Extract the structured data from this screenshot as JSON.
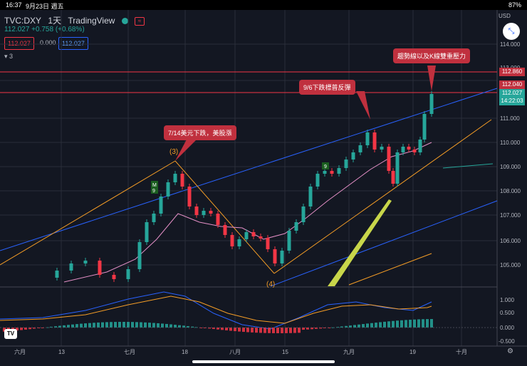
{
  "status": {
    "time": "16:37",
    "date": "9月23日 週五",
    "right": "87%"
  },
  "header": {
    "symbol": "TVC:DXY",
    "interval": "1天",
    "source": "TradingView",
    "change": "112.027 +0.758 (+0.68%)",
    "quote_bid": "112.027",
    "quote_spread": "0.000",
    "quote_ask": "112.027",
    "layers": "3"
  },
  "price_axis": {
    "currency": "USD",
    "ticks": [
      "114.000",
      "113.000",
      "112.000",
      "111.000",
      "110.000",
      "109.000",
      "108.000",
      "107.000",
      "106.000",
      "105.000"
    ],
    "marker_upper": "112.860",
    "marker_lower": "112.040",
    "marker_last": "112.027",
    "marker_timer": "14:22:03"
  },
  "macd_axis": {
    "ticks": [
      "1.000",
      "0.500",
      "0.000",
      "-0.500"
    ]
  },
  "time_axis": {
    "labels": [
      "六月",
      "13",
      "七月",
      "18",
      "八月",
      "15",
      "九月",
      "19",
      "十月"
    ]
  },
  "annotations": {
    "a1": "7/14美元下跌，美股漲",
    "a2": "9/6下跌標普反彈",
    "a3": "趨勢線以及K線雙重壓力"
  },
  "wave_labels": {
    "w3": "(3)",
    "w4": "(4)",
    "m9": "M\n9",
    "n9": "9"
  },
  "colors": {
    "up": "#26a69a",
    "down": "#f23645",
    "bg": "#131722",
    "grid": "#2a2e39"
  }
}
